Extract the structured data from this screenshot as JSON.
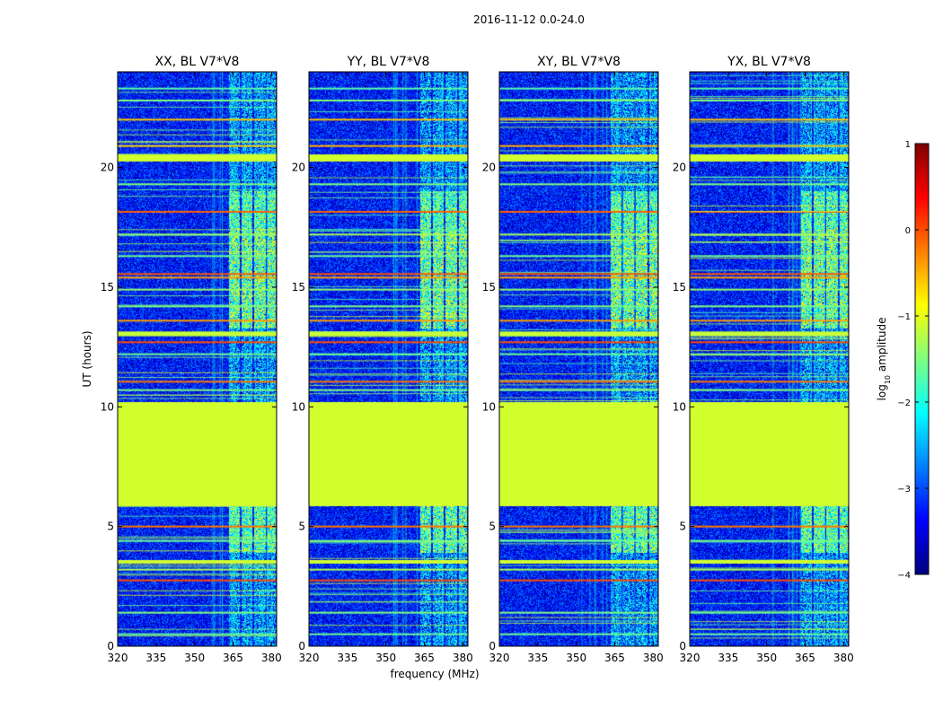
{
  "chart_data": {
    "type": "heatmap",
    "suptitle": "2016-11-12 0.0-24.0",
    "xlabel": "frequency (MHz)",
    "ylabel": "UT (hours)",
    "xlim": [
      320,
      382
    ],
    "ylim": [
      0,
      24
    ],
    "xticks": [
      320,
      335,
      350,
      365,
      380
    ],
    "yticks": [
      0,
      5,
      10,
      15,
      20
    ],
    "colorbar": {
      "label_prefix": "log",
      "label_sub": "10",
      "label_suffix": " amplitude",
      "range": [
        -4,
        1
      ],
      "ticks": [
        "1",
        "0",
        "−1",
        "−2",
        "−3",
        "−4"
      ],
      "colormap": "jet",
      "colors": [
        "#00007f",
        "#0000ff",
        "#007fff",
        "#00ffff",
        "#7fff7f",
        "#ffff00",
        "#ff7f00",
        "#ff0000",
        "#7f0000"
      ]
    },
    "panels": [
      {
        "title": "XX, BL V7*V8",
        "seed": 11
      },
      {
        "title": "YY, BL V7*V8",
        "seed": 23
      },
      {
        "title": "XY, BL V7*V8",
        "seed": 37
      },
      {
        "title": "YX, BL V7*V8",
        "seed": 53
      }
    ],
    "background_level": -3.3,
    "flagged_fill_value": -1.1,
    "flagged_time_bands": [
      {
        "t0": 5.85,
        "t1": 10.2,
        "value": -1.1
      },
      {
        "t0": 20.25,
        "t1": 20.55,
        "value": -1.1
      },
      {
        "t0": 12.95,
        "t1": 13.15,
        "value": -1.15
      },
      {
        "t0": 3.45,
        "t1": 3.6,
        "value": -1.1
      }
    ],
    "rfi_time_lines": [
      {
        "t": 18.15,
        "value": -0.1
      },
      {
        "t": 15.55,
        "value": -0.05
      },
      {
        "t": 15.4,
        "value": -0.4
      },
      {
        "t": 12.7,
        "value": 0.0
      },
      {
        "t": 11.05,
        "value": -0.2
      },
      {
        "t": 2.75,
        "value": 0.0
      },
      {
        "t": 5.0,
        "value": -0.2
      },
      {
        "t": 13.6,
        "value": -0.4
      },
      {
        "t": 22.0,
        "value": -0.6
      },
      {
        "t": 20.9,
        "value": -0.5
      },
      {
        "t": 19.3,
        "value": -1.5
      },
      {
        "t": 17.2,
        "value": -1.3
      },
      {
        "t": 16.3,
        "value": -1.6
      },
      {
        "t": 14.9,
        "value": -1.4
      },
      {
        "t": 14.2,
        "value": -1.5
      },
      {
        "t": 12.2,
        "value": -1.6
      },
      {
        "t": 10.7,
        "value": -1.5
      },
      {
        "t": 4.4,
        "value": -1.6
      },
      {
        "t": 3.2,
        "value": -1.3
      },
      {
        "t": 1.4,
        "value": -1.5
      },
      {
        "t": 0.5,
        "value": -1.6
      },
      {
        "t": 22.8,
        "value": -1.5
      },
      {
        "t": 23.3,
        "value": -1.7
      }
    ],
    "rfi_freq_columns": [
      {
        "f0": 363.5,
        "f1": 367.5,
        "value": -1.0
      },
      {
        "f0": 368.5,
        "f1": 372.5,
        "value": -0.9
      },
      {
        "f0": 373.5,
        "f1": 377.5,
        "value": -1.0
      },
      {
        "f0": 378.5,
        "f1": 381.5,
        "value": -1.1
      }
    ],
    "rfi_freq_active_time": [
      {
        "t0": 13.3,
        "t1": 17.5,
        "value": -1.0
      },
      {
        "t0": 17.5,
        "t1": 19.0,
        "value": -1.3
      },
      {
        "t0": 3.9,
        "t1": 5.85,
        "value": -1.2
      },
      {
        "t0": 0.0,
        "t1": 24.0,
        "value": -2.2
      }
    ]
  }
}
